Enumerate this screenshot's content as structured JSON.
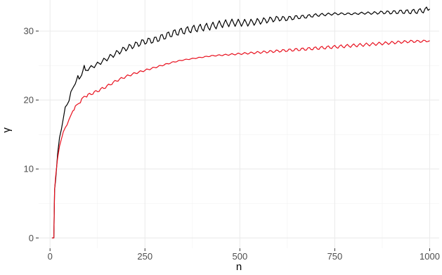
{
  "chart_data": {
    "type": "line",
    "title": "",
    "xlabel": "n",
    "ylabel": "γ",
    "xlim": [
      -30,
      1025
    ],
    "ylim": [
      -1.5,
      34.5
    ],
    "x_ticks": [
      0,
      250,
      500,
      750,
      1000
    ],
    "x_tick_labels": [
      "0",
      "250",
      "500",
      "750",
      "1000"
    ],
    "y_ticks": [
      0,
      10,
      20,
      30
    ],
    "y_tick_labels": [
      "0",
      "10",
      "20",
      "30"
    ],
    "grid": true,
    "legend": "none",
    "series": [
      {
        "color": "#000000",
        "points": [
          [
            5,
            0
          ],
          [
            10,
            0
          ],
          [
            12,
            7
          ],
          [
            15,
            9
          ],
          [
            20,
            12
          ],
          [
            25,
            14.5
          ],
          [
            30,
            16
          ],
          [
            35,
            17
          ],
          [
            40,
            18.5
          ],
          [
            45,
            19.5
          ],
          [
            50,
            20
          ],
          [
            55,
            21
          ],
          [
            60,
            22
          ],
          [
            70,
            22.8
          ],
          [
            80,
            23.5
          ],
          [
            90,
            24.5
          ],
          [
            100,
            24.5
          ],
          [
            125,
            25.2
          ],
          [
            150,
            26
          ],
          [
            175,
            26.8
          ],
          [
            200,
            27.5
          ],
          [
            225,
            28
          ],
          [
            250,
            28.5
          ],
          [
            275,
            28.7
          ],
          [
            300,
            29.2
          ],
          [
            325,
            29.7
          ],
          [
            350,
            30
          ],
          [
            375,
            30.3
          ],
          [
            400,
            30.5
          ],
          [
            425,
            30.7
          ],
          [
            450,
            31
          ],
          [
            475,
            31.2
          ],
          [
            500,
            31.2
          ],
          [
            525,
            31.2
          ],
          [
            550,
            31.4
          ],
          [
            575,
            31.6
          ],
          [
            600,
            31.8
          ],
          [
            625,
            31.8
          ],
          [
            650,
            32
          ],
          [
            675,
            32.1
          ],
          [
            700,
            32.3
          ],
          [
            725,
            32.4
          ],
          [
            750,
            32.5
          ],
          [
            775,
            32.5
          ],
          [
            800,
            32.5
          ],
          [
            825,
            32.6
          ],
          [
            850,
            32.6
          ],
          [
            875,
            32.7
          ],
          [
            900,
            32.7
          ],
          [
            925,
            32.8
          ],
          [
            950,
            32.8
          ],
          [
            975,
            32.9
          ],
          [
            1000,
            33.2
          ]
        ]
      },
      {
        "color": "#e8101e",
        "points": [
          [
            5,
            0
          ],
          [
            10,
            0
          ],
          [
            12,
            7
          ],
          [
            15,
            9
          ],
          [
            20,
            11.5
          ],
          [
            25,
            13.5
          ],
          [
            30,
            14.5
          ],
          [
            35,
            15.3
          ],
          [
            40,
            16
          ],
          [
            45,
            16.5
          ],
          [
            50,
            17
          ],
          [
            60,
            18.5
          ],
          [
            70,
            19.2
          ],
          [
            80,
            19.8
          ],
          [
            90,
            20.5
          ],
          [
            100,
            20.7
          ],
          [
            125,
            21.3
          ],
          [
            150,
            22
          ],
          [
            175,
            22.8
          ],
          [
            200,
            23.4
          ],
          [
            225,
            23.9
          ],
          [
            250,
            24.3
          ],
          [
            275,
            24.7
          ],
          [
            300,
            25.1
          ],
          [
            325,
            25.5
          ],
          [
            350,
            25.8
          ],
          [
            375,
            26
          ],
          [
            400,
            26.2
          ],
          [
            425,
            26.4
          ],
          [
            450,
            26.5
          ],
          [
            475,
            26.6
          ],
          [
            500,
            26.7
          ],
          [
            525,
            26.8
          ],
          [
            550,
            26.9
          ],
          [
            575,
            27
          ],
          [
            600,
            27.1
          ],
          [
            625,
            27.2
          ],
          [
            650,
            27.3
          ],
          [
            675,
            27.4
          ],
          [
            700,
            27.5
          ],
          [
            725,
            27.6
          ],
          [
            750,
            27.7
          ],
          [
            775,
            27.8
          ],
          [
            800,
            27.9
          ],
          [
            825,
            28
          ],
          [
            850,
            28.1
          ],
          [
            875,
            28.2
          ],
          [
            900,
            28.3
          ],
          [
            925,
            28.4
          ],
          [
            950,
            28.5
          ],
          [
            975,
            28.5
          ],
          [
            1000,
            28.6
          ]
        ]
      }
    ]
  }
}
